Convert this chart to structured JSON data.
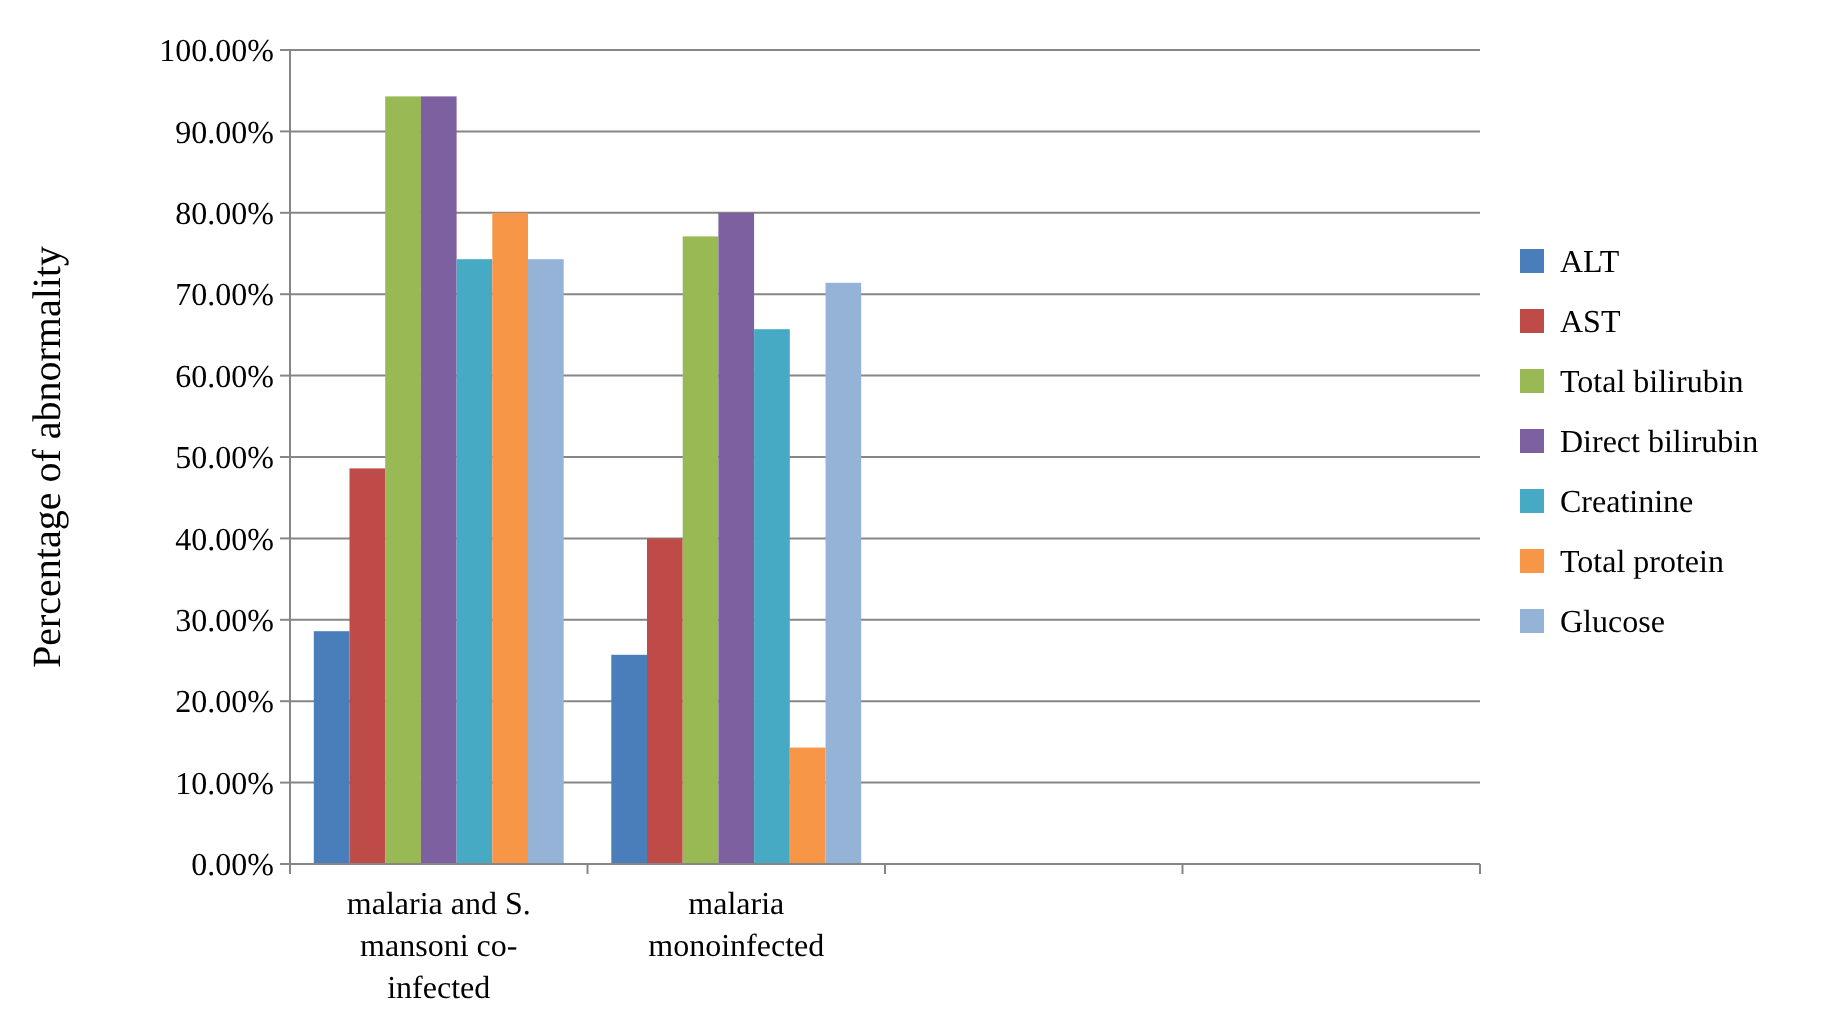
{
  "chart_data": {
    "type": "bar",
    "ylabel": "Percentage of abnormality",
    "categories": [
      "malaria and S. mansoni co-infected",
      "malaria monoinfected",
      null,
      null
    ],
    "series": [
      {
        "name": "ALT",
        "color": "#4a7ebb",
        "values": [
          28.6,
          25.7,
          null,
          null
        ]
      },
      {
        "name": "AST",
        "color": "#be4b48",
        "values": [
          48.6,
          40,
          null,
          null
        ]
      },
      {
        "name": "Total bilirubin",
        "color": "#98b954",
        "values": [
          94.3,
          77.1,
          null,
          null
        ]
      },
      {
        "name": "Direct bilirubin",
        "color": "#7d60a0",
        "values": [
          94.3,
          80,
          null,
          null
        ]
      },
      {
        "name": "Creatinine",
        "color": "#46aac5",
        "values": [
          74.3,
          65.7,
          null,
          null
        ]
      },
      {
        "name": "Total protein",
        "color": "#f79646",
        "values": [
          80,
          14.3,
          null,
          null
        ]
      },
      {
        "name": "Glucose",
        "color": "#95b3d7",
        "values": [
          74.3,
          71.4,
          null,
          null
        ]
      }
    ],
    "ylim": [
      0,
      100
    ],
    "yticks": [
      {
        "value": 0,
        "label": "0.00%"
      },
      {
        "value": 10,
        "label": "10.00%"
      },
      {
        "value": 20,
        "label": "20.00%"
      },
      {
        "value": 30,
        "label": "30.00%"
      },
      {
        "value": 40,
        "label": "40.00%"
      },
      {
        "value": 50,
        "label": "50.00%"
      },
      {
        "value": 60,
        "label": "60.00%"
      },
      {
        "value": 70,
        "label": "70.00%"
      },
      {
        "value": 80,
        "label": "80.00%"
      },
      {
        "value": 90,
        "label": "90.00%"
      },
      {
        "value": 100,
        "label": "100.00%"
      }
    ],
    "grid": "y",
    "legend": "right"
  }
}
